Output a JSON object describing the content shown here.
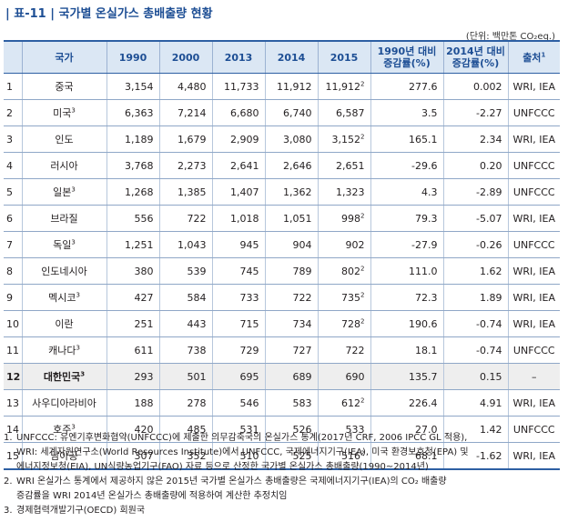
{
  "title": "| 표-11 | 국가별 온실가스 총배출량 현황",
  "unit": "(단위: 백만톤 CO₂eq.)",
  "headers": {
    "country": "국가",
    "y1990": "1990",
    "y2000": "2000",
    "y2013": "2013",
    "y2014": "2014",
    "y2015": "2015",
    "chg1990_l1": "1990년 대비",
    "chg1990_l2": "증감률(%)",
    "chg2014_l1": "2014년 대비",
    "chg2014_l2": "증감률(%)",
    "source": "출처",
    "source_sup": "1"
  },
  "rows": [
    {
      "idx": "1",
      "country": "중국",
      "csup": "",
      "y1990": "3,154",
      "y2000": "4,480",
      "y2013": "11,733",
      "y2014": "11,912",
      "y2015": "11,912",
      "y2015sup": "2",
      "chg1990": "277.6",
      "chg2014": "0.002",
      "source": "WRI, IEA"
    },
    {
      "idx": "2",
      "country": "미국",
      "csup": "3",
      "y1990": "6,363",
      "y2000": "7,214",
      "y2013": "6,680",
      "y2014": "6,740",
      "y2015": "6,587",
      "y2015sup": "",
      "chg1990": "3.5",
      "chg2014": "-2.27",
      "source": "UNFCCC"
    },
    {
      "idx": "3",
      "country": "인도",
      "csup": "",
      "y1990": "1,189",
      "y2000": "1,679",
      "y2013": "2,909",
      "y2014": "3,080",
      "y2015": "3,152",
      "y2015sup": "2",
      "chg1990": "165.1",
      "chg2014": "2.34",
      "source": "WRI, IEA"
    },
    {
      "idx": "4",
      "country": "러시아",
      "csup": "",
      "y1990": "3,768",
      "y2000": "2,273",
      "y2013": "2,641",
      "y2014": "2,646",
      "y2015": "2,651",
      "y2015sup": "",
      "chg1990": "-29.6",
      "chg2014": "0.20",
      "source": "UNFCCC"
    },
    {
      "idx": "5",
      "country": "일본",
      "csup": "3",
      "y1990": "1,268",
      "y2000": "1,385",
      "y2013": "1,407",
      "y2014": "1,362",
      "y2015": "1,323",
      "y2015sup": "",
      "chg1990": "4.3",
      "chg2014": "-2.89",
      "source": "UNFCCC"
    },
    {
      "idx": "6",
      "country": "브라질",
      "csup": "",
      "y1990": "556",
      "y2000": "722",
      "y2013": "1,018",
      "y2014": "1,051",
      "y2015": "998",
      "y2015sup": "2",
      "chg1990": "79.3",
      "chg2014": "-5.07",
      "source": "WRI, IEA"
    },
    {
      "idx": "7",
      "country": "독일",
      "csup": "3",
      "y1990": "1,251",
      "y2000": "1,043",
      "y2013": "945",
      "y2014": "904",
      "y2015": "902",
      "y2015sup": "",
      "chg1990": "-27.9",
      "chg2014": "-0.26",
      "source": "UNFCCC"
    },
    {
      "idx": "8",
      "country": "인도네시아",
      "csup": "",
      "y1990": "380",
      "y2000": "539",
      "y2013": "745",
      "y2014": "789",
      "y2015": "802",
      "y2015sup": "2",
      "chg1990": "111.0",
      "chg2014": "1.62",
      "source": "WRI, IEA"
    },
    {
      "idx": "9",
      "country": "멕시코",
      "csup": "3",
      "y1990": "427",
      "y2000": "584",
      "y2013": "733",
      "y2014": "722",
      "y2015": "735",
      "y2015sup": "2",
      "chg1990": "72.3",
      "chg2014": "1.89",
      "source": "WRI, IEA"
    },
    {
      "idx": "10",
      "country": "이란",
      "csup": "",
      "y1990": "251",
      "y2000": "443",
      "y2013": "715",
      "y2014": "734",
      "y2015": "728",
      "y2015sup": "2",
      "chg1990": "190.6",
      "chg2014": "-0.74",
      "source": "WRI, IEA"
    },
    {
      "idx": "11",
      "country": "캐나다",
      "csup": "3",
      "y1990": "611",
      "y2000": "738",
      "y2013": "729",
      "y2014": "727",
      "y2015": "722",
      "y2015sup": "",
      "chg1990": "18.1",
      "chg2014": "-0.74",
      "source": "UNFCCC"
    },
    {
      "idx": "12",
      "country": "대한민국",
      "csup": "3",
      "y1990": "293",
      "y2000": "501",
      "y2013": "695",
      "y2014": "689",
      "y2015": "690",
      "y2015sup": "",
      "chg1990": "135.7",
      "chg2014": "0.15",
      "source": "–",
      "highlight": true
    },
    {
      "idx": "13",
      "country": "사우디아라비아",
      "csup": "",
      "y1990": "188",
      "y2000": "278",
      "y2013": "546",
      "y2014": "583",
      "y2015": "612",
      "y2015sup": "2",
      "chg1990": "226.4",
      "chg2014": "4.91",
      "source": "WRI, IEA"
    },
    {
      "idx": "14",
      "country": "호주",
      "csup": "3",
      "y1990": "420",
      "y2000": "485",
      "y2013": "531",
      "y2014": "526",
      "y2015": "533",
      "y2015sup": "",
      "chg1990": "27.0",
      "chg2014": "1.42",
      "source": "UNFCCC"
    },
    {
      "idx": "15",
      "country": "남아공",
      "csup": "",
      "y1990": "307",
      "y2000": "352",
      "y2013": "510",
      "y2014": "525",
      "y2015": "516",
      "y2015sup": "2",
      "chg1990": "68.1",
      "chg2014": "-1.62",
      "source": "WRI, IEA"
    }
  ],
  "notes": [
    {
      "num": "1.",
      "lines": [
        "UNFCCC: 유엔기후변화협약(UNFCCC)에 제출한 의무감축국의 온실가스 통계(2017년 CRF, 2006 IPCC GL 적용),",
        "WRI: 세계자원연구소(World Resources Institute)에서 UNFCCC, 국제에너지기구(IEA), 미국 환경보호청(EPA) 및",
        "에너지정보청(EIA), UN식량농업기구(FAO) 자료 등으로 산정한 국가별 온실가스 총배출량(1990~2014년)"
      ]
    },
    {
      "num": "2.",
      "lines": [
        "WRI 온실가스 통계에서 제공하지 않은 2015년 국가별 온실가스 총배출량은 국제에너지기구(IEA)의 CO₂ 배출량",
        "증감률을 WRI 2014년 온실가스 총배출량에 적용하여 계산한 추정치임"
      ]
    },
    {
      "num": "3.",
      "lines": [
        "경제협력개발기구(OECD) 회원국"
      ]
    }
  ]
}
